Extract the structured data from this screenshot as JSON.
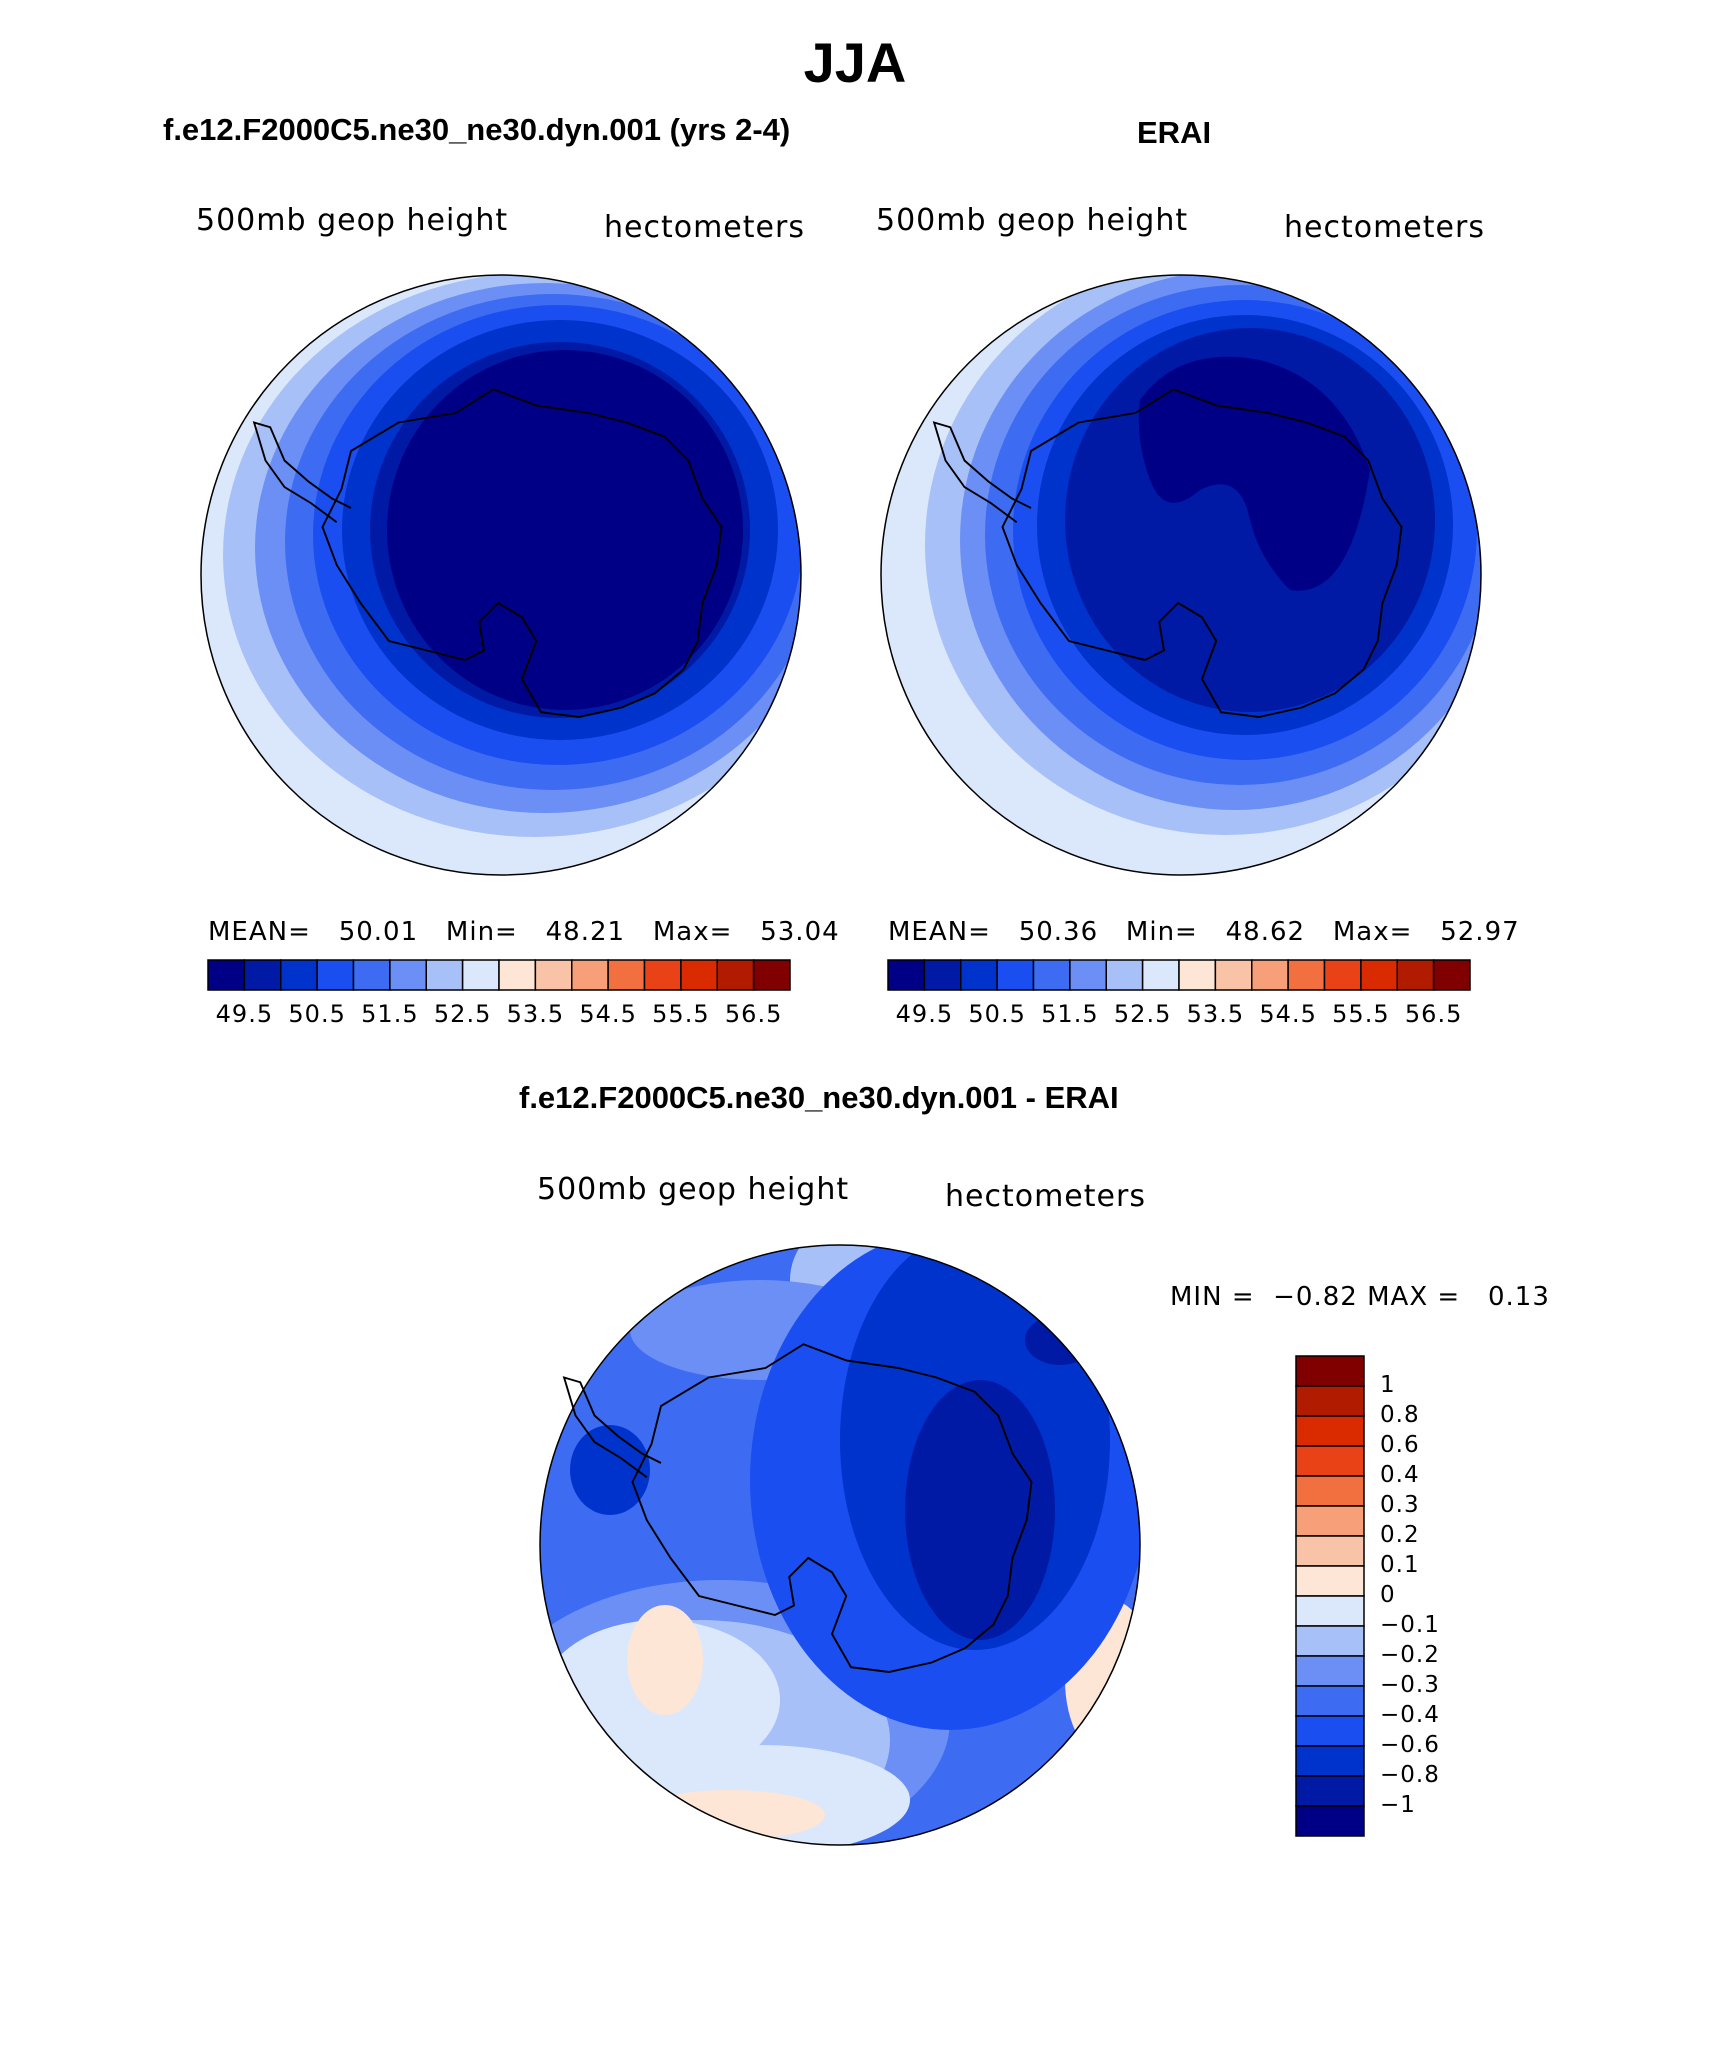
{
  "main_title": "JJA",
  "panels": [
    {
      "title": "f.e12.F2000C5.ne30_ne30.dyn.001 (yrs 2-4)",
      "left_label": "500mb geop height",
      "right_label": "hectometers",
      "stats": {
        "mean_label": "MEAN=",
        "mean": "50.01",
        "min_label": "Min=",
        "min": "48.21",
        "max_label": "Max=",
        "max": "53.04"
      }
    },
    {
      "title": "ERAI",
      "left_label": "500mb geop height",
      "right_label": "hectometers",
      "stats": {
        "mean_label": "MEAN=",
        "mean": "50.36",
        "min_label": "Min=",
        "min": "48.62",
        "max_label": "Max=",
        "max": "52.97"
      }
    },
    {
      "title": "f.e12.F2000C5.ne30_ne30.dyn.001 - ERAI",
      "left_label": "500mb geop height",
      "right_label": "hectometers",
      "stats": {
        "min_label": "MIN =",
        "min": "−0.82",
        "max_label": "MAX =",
        "max": "0.13"
      }
    }
  ],
  "colorbar_top": {
    "colors": [
      "#000086",
      "#001aa6",
      "#0033cc",
      "#1a4ef0",
      "#3d6cf3",
      "#6b8ff5",
      "#a7c0f7",
      "#dbe8fc",
      "#fde6d6",
      "#f9c3a8",
      "#f79f78",
      "#f2703f",
      "#ea4217",
      "#d92a00",
      "#b11b00",
      "#800000"
    ],
    "tick_labels": [
      "49.5",
      "50.5",
      "51.5",
      "52.5",
      "53.5",
      "54.5",
      "55.5",
      "56.5"
    ]
  },
  "colorbar_diff": {
    "colors": [
      "#800000",
      "#b11b00",
      "#d92a00",
      "#ea4217",
      "#f2703f",
      "#f79f78",
      "#f9c3a8",
      "#fde6d6",
      "#dbe8fc",
      "#a7c0f7",
      "#6b8ff5",
      "#3d6cf3",
      "#1a4ef0",
      "#0033cc",
      "#001aa6",
      "#000086"
    ],
    "tick_labels": [
      "1",
      "0.8",
      "0.6",
      "0.4",
      "0.3",
      "0.2",
      "0.1",
      "0",
      "−0.1",
      "−0.2",
      "−0.3",
      "−0.4",
      "−0.6",
      "−0.8",
      "−1"
    ]
  },
  "map_colors": {
    "deep": "#000086",
    "navy": "#001aa6",
    "dark": "#0033cc",
    "mid": "#1a4ef0",
    "med": "#3d6cf3",
    "light": "#6b8ff5",
    "pale": "#a7c0f7",
    "palest": "#dbe8fc",
    "peach": "#fde6d6",
    "salmon": "#f9c3a8"
  }
}
